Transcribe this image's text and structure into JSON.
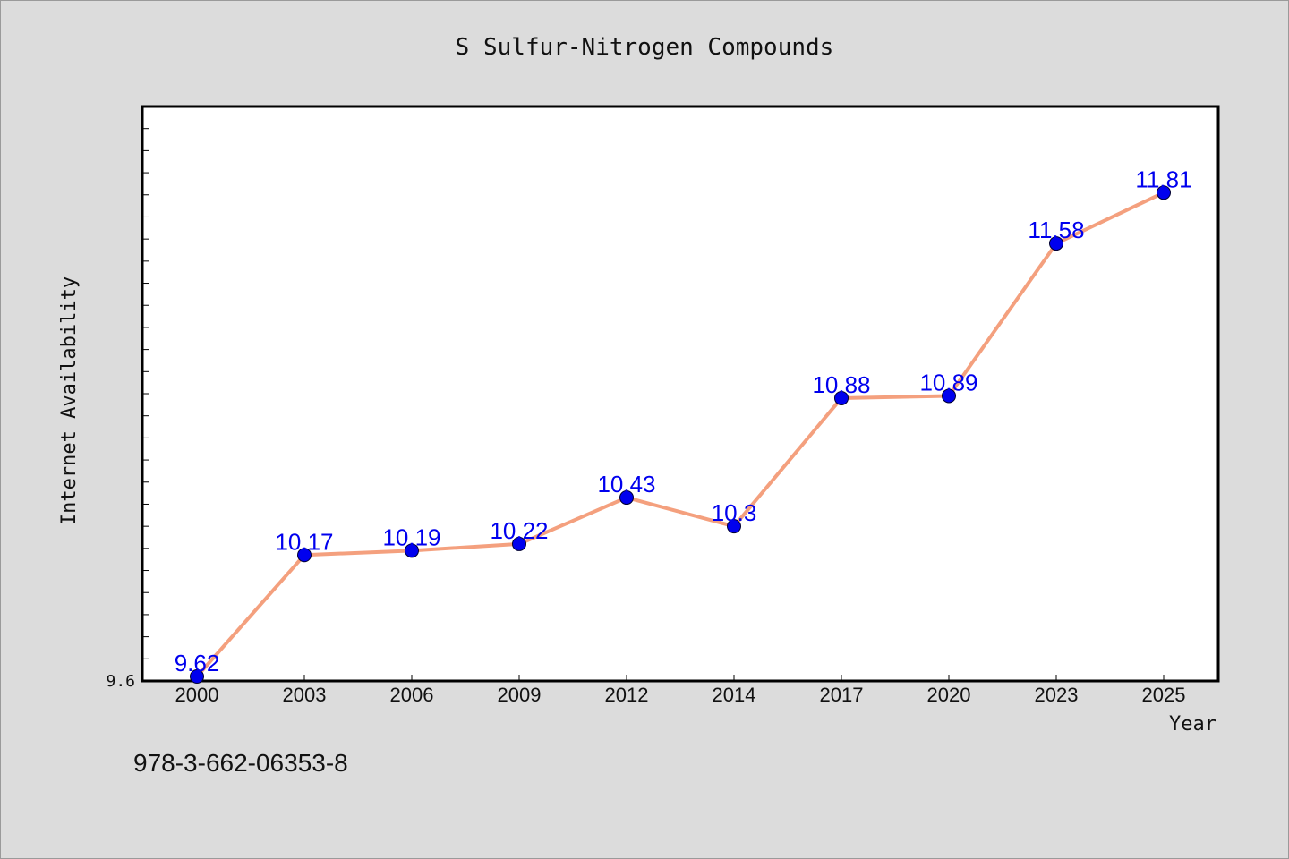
{
  "chart_data": {
    "type": "line",
    "title": "S Sulfur-Nitrogen Compounds",
    "xlabel": "Year",
    "ylabel": "Internet Availability",
    "categories": [
      "2000",
      "2003",
      "2006",
      "2009",
      "2012",
      "2014",
      "2017",
      "2020",
      "2023",
      "2025"
    ],
    "values": [
      9.62,
      10.17,
      10.19,
      10.22,
      10.43,
      10.3,
      10.88,
      10.89,
      11.58,
      11.81
    ],
    "data_labels": [
      "9.62",
      "10.17",
      "10.19",
      "10.22",
      "10.43",
      "10.3",
      "10.88",
      "10.89",
      "11.58",
      "11.81"
    ],
    "y_tick_labels": [
      "9.6"
    ],
    "ylim": [
      9.6,
      12.2
    ],
    "grid": false,
    "line_color": "#f4a07e",
    "marker_color": "#0000ee",
    "data_label_color": "#0000ee"
  },
  "footer": {
    "isbn": "978-3-662-06353-8"
  }
}
